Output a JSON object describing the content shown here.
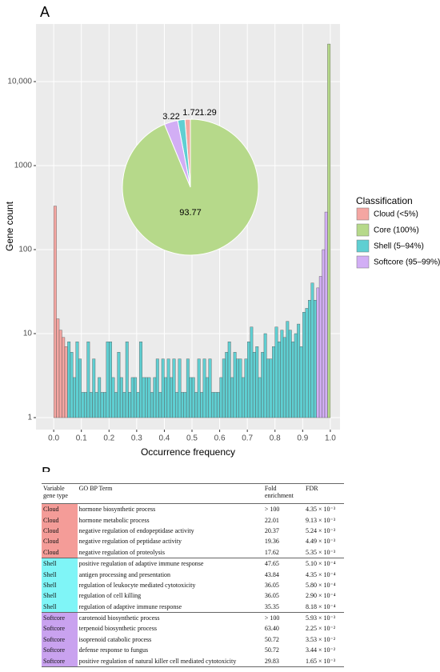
{
  "panel_labels": [
    "A",
    "B"
  ],
  "chart_data": [
    {
      "type": "histogram",
      "x_label": "Occurrence frequency",
      "y_label": "Gene count",
      "log_y": true,
      "grid": true,
      "legend_title": "Classification",
      "legend_position": "right",
      "xlim": [
        -0.064,
        1.035
      ],
      "xticks": [
        {
          "value": 0,
          "label": "0.0"
        },
        0.1,
        0.2,
        0.3,
        0.4,
        0.5,
        0.6,
        0.7,
        0.8,
        0.9,
        {
          "value": 1,
          "label": "1.0"
        }
      ],
      "ylim": [
        0.72,
        48500
      ],
      "yticks": [
        1,
        10,
        100,
        1000,
        {
          "value": 10000,
          "label": "10,000"
        }
      ],
      "series": [
        {
          "name": "Cloud (<5%)",
          "color": "#f4a6a2",
          "bins": [
            0,
            0.01,
            0.02,
            0.03,
            0.04,
            0.05
          ],
          "values": [
            330,
            15,
            11,
            9,
            7
          ]
        },
        {
          "name": "Core (100%)",
          "color": "#b6d98a",
          "bins": [
            0.99,
            1.0
          ],
          "values": [
            28000
          ]
        },
        {
          "name": "Shell (5–94%)",
          "color": "#5fcfd2",
          "bins": [
            0.05,
            0.06,
            0.07,
            0.08,
            0.09,
            0.1,
            0.11,
            0.12,
            0.13,
            0.14,
            0.15,
            0.16,
            0.17,
            0.18,
            0.19,
            0.2,
            0.21,
            0.22,
            0.23,
            0.24,
            0.25,
            0.26,
            0.27,
            0.28,
            0.29,
            0.3,
            0.31,
            0.32,
            0.33,
            0.34,
            0.35,
            0.36,
            0.37,
            0.38,
            0.39,
            0.4,
            0.41,
            0.42,
            0.43,
            0.44,
            0.45,
            0.46,
            0.47,
            0.48,
            0.49,
            0.5,
            0.51,
            0.52,
            0.53,
            0.54,
            0.55,
            0.56,
            0.57,
            0.58,
            0.59,
            0.6,
            0.61,
            0.62,
            0.63,
            0.64,
            0.65,
            0.66,
            0.67,
            0.68,
            0.69,
            0.7,
            0.71,
            0.72,
            0.73,
            0.74,
            0.75,
            0.76,
            0.77,
            0.78,
            0.79,
            0.8,
            0.81,
            0.82,
            0.83,
            0.84,
            0.85,
            0.86,
            0.87,
            0.88,
            0.89,
            0.9,
            0.91,
            0.92,
            0.93,
            0.94,
            0.95
          ],
          "values": [
            8,
            6,
            3,
            8,
            5,
            2,
            2,
            8,
            2,
            5,
            2,
            3,
            2,
            2,
            8,
            8,
            3,
            2,
            6,
            3,
            2,
            8,
            2,
            3,
            3,
            2,
            8,
            3,
            3,
            3,
            2,
            3,
            5,
            2,
            5,
            3,
            5,
            3,
            5,
            2,
            5,
            2,
            2,
            5,
            3,
            3,
            2,
            5,
            2,
            5,
            3,
            5,
            2,
            2,
            2,
            3,
            5,
            6,
            8,
            3,
            6,
            5,
            5,
            3,
            5,
            8,
            12,
            6,
            7,
            3,
            6,
            10,
            5,
            5,
            7,
            12,
            8,
            11,
            9,
            14,
            11,
            8,
            10,
            13,
            7,
            18,
            20,
            25,
            40,
            25
          ]
        },
        {
          "name": "Softcore (95–99%)",
          "color": "#d2aef5",
          "bins": [
            0.95,
            0.96,
            0.97,
            0.98,
            0.99
          ],
          "values": [
            35,
            48,
            100,
            280
          ]
        }
      ]
    },
    {
      "type": "pie",
      "categories": [
        "Cloud (<5%)",
        "Shell (5–94%)",
        "Softcore (95–99%)",
        "Core (100%)"
      ],
      "values": [
        1.29,
        1.72,
        3.22,
        93.77
      ],
      "colors": [
        "#f4a6a2",
        "#5fcfd2",
        "#d2aef5",
        "#b6d98a"
      ]
    }
  ],
  "table": {
    "header": [
      "Variable gene type",
      "GO BP Term",
      "Fold enrichment",
      "FDR"
    ],
    "type_colors": {
      "Cloud": "#f49c98",
      "Shell": "#7ff5f7",
      "Softcore": "#c9a2ef"
    },
    "rows": [
      [
        "Cloud",
        "hormone biosynthetic process",
        "> 100",
        "4.35 × 10⁻³"
      ],
      [
        "Cloud",
        "hormone metabolic process",
        "22.01",
        "9.13 × 10⁻³"
      ],
      [
        "Cloud",
        "negative regulation of endopeptidase activity",
        "20.37",
        "5.24 × 10⁻³"
      ],
      [
        "Cloud",
        "negative regulation of peptidase activity",
        "19.36",
        "4.49 × 10⁻³"
      ],
      [
        "Cloud",
        "negative regulation of proteolysis",
        "17.62",
        "5.35 × 10⁻³"
      ],
      [
        "Shell",
        "positive regulation of adaptive immune response",
        "47.65",
        "5.10 × 10⁻⁴"
      ],
      [
        "Shell",
        "antigen processing and presentation",
        "43.84",
        "4.35 × 10⁻⁴"
      ],
      [
        "Shell",
        "regulation of leukocyte mediated cytotoxicity",
        "36.05",
        "5.80 × 10⁻⁴"
      ],
      [
        "Shell",
        "regulation of cell killing",
        "36.05",
        "2.90 × 10⁻⁴"
      ],
      [
        "Shell",
        "regulation of adaptive immune response",
        "35.35",
        "8.18 × 10⁻⁴"
      ],
      [
        "Softcore",
        "carotenoid biosynthetic process",
        "> 100",
        "5.93 × 10⁻³"
      ],
      [
        "Softcore",
        "terpenoid biosynthetic process",
        "63.40",
        "2.25 × 10⁻²"
      ],
      [
        "Softcore",
        "isoprenoid catabolic process",
        "50.72",
        "3.53 × 10⁻²"
      ],
      [
        "Softcore",
        "defense response to fungus",
        "50.72",
        "3.44 × 10⁻²"
      ],
      [
        "Softcore",
        "positive regulation of natural killer cell mediated cytotoxicity",
        "29.83",
        "1.65 × 10⁻³"
      ]
    ]
  }
}
